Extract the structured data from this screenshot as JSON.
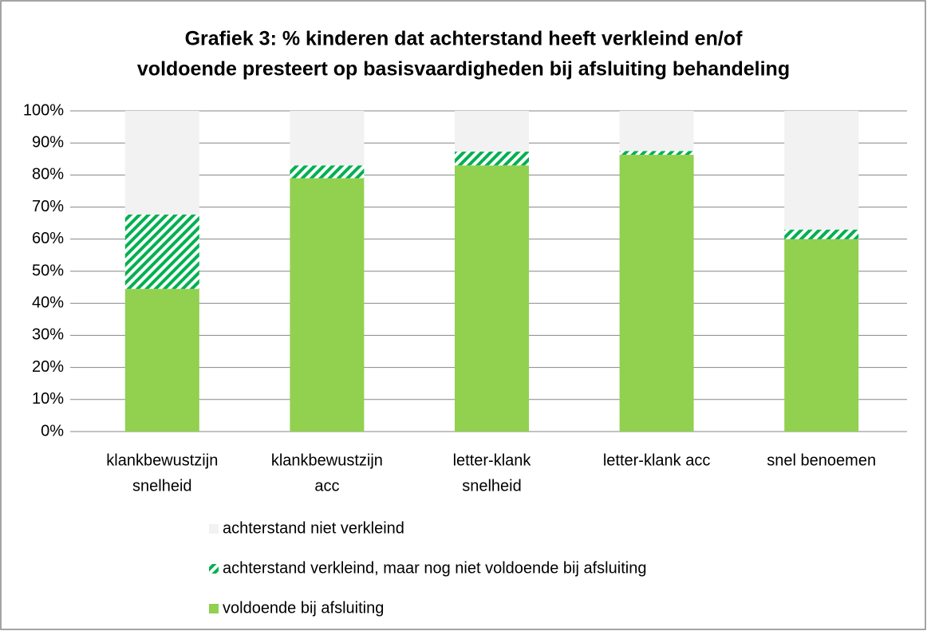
{
  "chart_data": {
    "type": "stacked_bar",
    "title": [
      "Grafiek 3: % kinderen dat achterstand heeft verkleind en/of",
      "voldoende presteert op basisvaardigheden bij afsluiting behandeling"
    ],
    "categories": [
      [
        "klankbewustzijn",
        "snelheid"
      ],
      [
        "klankbewustzijn",
        "acc"
      ],
      [
        "letter-klank",
        "snelheid"
      ],
      [
        "letter-klank acc"
      ],
      [
        "snel benoemen"
      ]
    ],
    "series": [
      {
        "name": "voldoende bij afsluiting",
        "color": "#92d050",
        "values": [
          44.5,
          79,
          83,
          86.3,
          60
        ]
      },
      {
        "name": "achterstand verkleind, maar nog niet voldoende bij afsluiting",
        "color": "#00b050",
        "pattern": "hatch",
        "values": [
          23.2,
          4,
          4.3,
          1.2,
          3
        ]
      },
      {
        "name": "achterstand niet verkleind",
        "color": "#f2f2f2",
        "values": [
          32.3,
          17,
          12.7,
          12.5,
          37
        ]
      }
    ],
    "ylim": [
      0,
      100
    ],
    "yticks": [
      {
        "value": 0,
        "label": "0%"
      },
      {
        "value": 10,
        "label": "10%"
      },
      {
        "value": 20,
        "label": "20%"
      },
      {
        "value": 30,
        "label": "30%"
      },
      {
        "value": 40,
        "label": "40%"
      },
      {
        "value": 50,
        "label": "50%"
      },
      {
        "value": 60,
        "label": "60%"
      },
      {
        "value": 70,
        "label": "70%"
      },
      {
        "value": 80,
        "label": "80%"
      },
      {
        "value": 90,
        "label": "90%"
      },
      {
        "value": 100,
        "label": "100%"
      }
    ],
    "grid": true,
    "legend": "bottom"
  }
}
